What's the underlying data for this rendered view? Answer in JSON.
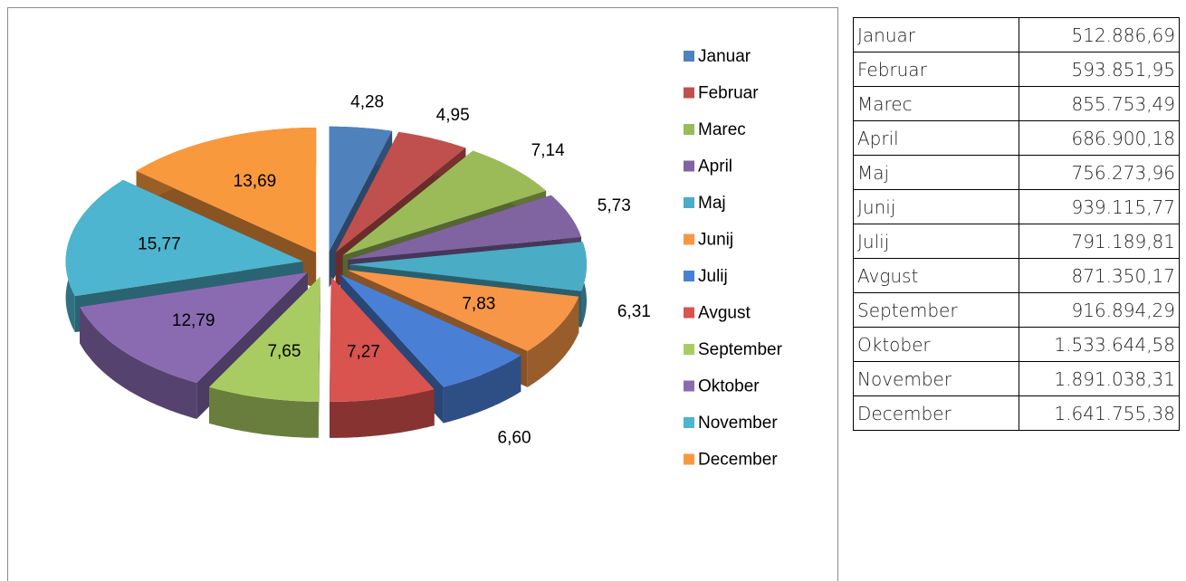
{
  "chart_data": {
    "type": "pie",
    "categories": [
      "Januar",
      "Februar",
      "Marec",
      "April",
      "Maj",
      "Junij",
      "Julij",
      "Avgust",
      "September",
      "Oktober",
      "November",
      "December"
    ],
    "values": [
      4.28,
      4.95,
      7.14,
      5.73,
      6.31,
      7.83,
      6.6,
      7.27,
      7.65,
      12.79,
      15.77,
      13.69
    ],
    "value_labels": [
      "4,28",
      "4,95",
      "7,14",
      "5,73",
      "6,31",
      "7,83",
      "6,60",
      "7,27",
      "7,65",
      "12,79",
      "15,77",
      "13,69"
    ],
    "colors": [
      "#4F81BD",
      "#C0504D",
      "#9BBB59",
      "#8064A2",
      "#4BACC6",
      "#F79646",
      "#4A7FD6",
      "#D9534F",
      "#A9CC62",
      "#8A6BB2",
      "#4DB5CF",
      "#F9993D"
    ],
    "legend": "right"
  },
  "table": {
    "rows": [
      [
        "Januar",
        "512.886,69"
      ],
      [
        "Februar",
        "593.851,95"
      ],
      [
        "Marec",
        "855.753,49"
      ],
      [
        "April",
        "686.900,18"
      ],
      [
        "Maj",
        "756.273,96"
      ],
      [
        "Junij",
        "939.115,77"
      ],
      [
        "Julij",
        "791.189,81"
      ],
      [
        "Avgust",
        "871.350,17"
      ],
      [
        "September",
        "916.894,29"
      ],
      [
        "Oktober",
        "1.533.644,58"
      ],
      [
        "November",
        "1.891.038,31"
      ],
      [
        "December",
        "1.641.755,38"
      ]
    ]
  }
}
